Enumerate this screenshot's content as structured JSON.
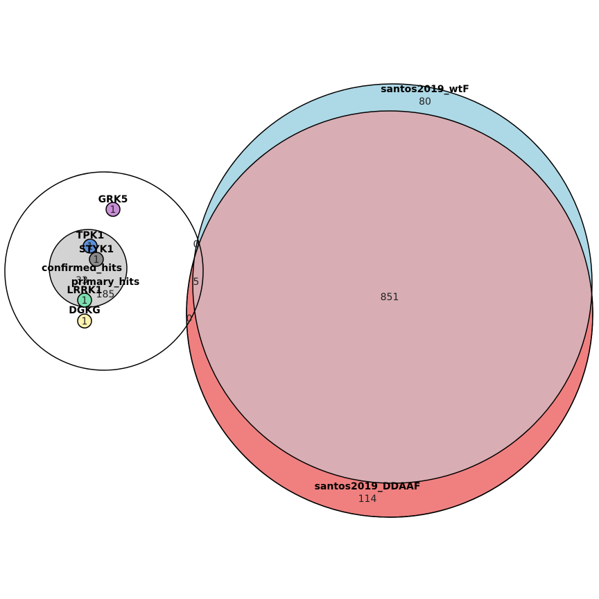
{
  "sets": {
    "wtF": {
      "label": "santos2019_wtF",
      "count": "80",
      "color": "#add8e6"
    },
    "ddaaf": {
      "label": "santos2019_DDAAF",
      "count": "114",
      "color": "#f08080"
    },
    "overlap": {
      "count": "851",
      "color": "#d8adb3"
    },
    "primary_hits": {
      "label": "primary_hits",
      "count": "185",
      "color": "#ffffff"
    },
    "confirmed_hits": {
      "label": "confirmed_hits",
      "count": "33",
      "color": "#d3d3d3"
    }
  },
  "edge_counts": {
    "primary_wtF": "0",
    "primary_both": "5",
    "primary_ddaaf": "0"
  },
  "singletons": [
    {
      "label": "GRK5",
      "count": "1",
      "color": "#c98fd6"
    },
    {
      "label": "TPK1",
      "count": "1",
      "color": "#5b8fd9"
    },
    {
      "label": "STYK1",
      "count": "1",
      "color": "#8a8a8a"
    },
    {
      "label": "LRRK1",
      "count": "1",
      "color": "#7be0b0"
    },
    {
      "label": "DGKG",
      "count": "1",
      "color": "#fff3b0"
    }
  ]
}
